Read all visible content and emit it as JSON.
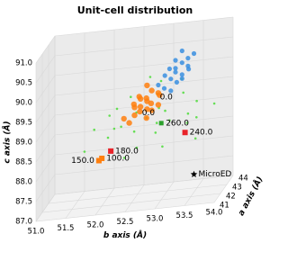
{
  "chart_data": {
    "type": "scatter3d",
    "title": "Unit-cell distribution",
    "xlabel": "b axis (Å)",
    "ylabel": "c axis (Å)",
    "zlabel": "a axis (Å)",
    "xlim": [
      51,
      54
    ],
    "ylim": [
      87,
      91
    ],
    "zlim": [
      41,
      44
    ],
    "xticks": [
      {
        "value": 51,
        "label": "51.0"
      },
      {
        "value": 51.5,
        "label": "51.5"
      },
      {
        "value": 52,
        "label": "52.0"
      },
      {
        "value": 52.5,
        "label": "52.5"
      },
      {
        "value": 53,
        "label": "53.0"
      },
      {
        "value": 53.5,
        "label": "53.5"
      },
      {
        "value": 54,
        "label": "54.0"
      }
    ],
    "yticks": [
      {
        "value": 87,
        "label": "87.0"
      },
      {
        "value": 87.5,
        "label": "87.5"
      },
      {
        "value": 88,
        "label": "88.0"
      },
      {
        "value": 88.5,
        "label": "88.5"
      },
      {
        "value": 89,
        "label": "89.0"
      },
      {
        "value": 89.5,
        "label": "89.5"
      },
      {
        "value": 90,
        "label": "90.0"
      },
      {
        "value": 90.5,
        "label": "90.5"
      },
      {
        "value": 91,
        "label": "91.0"
      }
    ],
    "zticks": [
      41,
      42,
      43,
      44
    ],
    "grid": true,
    "series": [
      {
        "color": "#4ddc3a",
        "marker": "dot",
        "size": 1.3,
        "x": [
          52.2,
          52.5,
          52.8,
          53.1,
          53.4,
          52.0,
          52.6,
          52.9,
          53.3,
          53.6,
          51.8,
          52.3,
          52.7,
          53.0,
          53.5,
          52.4,
          52.9,
          53.2,
          52.1,
          52.6,
          53.8,
          51.7,
          52.8,
          53.1,
          52.5,
          53.3,
          52.2,
          53.0,
          52.7,
          53.6
        ],
        "y": [
          88.9,
          89.1,
          88.7,
          89.3,
          89.0,
          88.5,
          88.4,
          89.6,
          88.6,
          89.4,
          88.8,
          89.5,
          89.9,
          88.3,
          88.8,
          88.2,
          89.2,
          89.7,
          89.2,
          88.9,
          89.1,
          88.4,
          88.5,
          88.9,
          89.7,
          89.5,
          88.7,
          90.0,
          89.0,
          88.5
        ],
        "z": [
          42.1,
          42.8,
          43.2,
          41.7,
          42.5,
          43.0,
          41.9,
          42.4,
          43.3,
          42.0,
          42.7,
          41.6,
          43.1,
          42.2,
          42.9,
          41.8,
          42.6,
          43.4,
          42.3,
          41.5,
          42.9,
          42.1,
          43.0,
          42.4,
          41.9,
          42.7,
          43.2,
          42.0,
          42.5,
          41.8
        ]
      },
      {
        "color": "#3a8fe0",
        "marker": "dot",
        "size": 2.6,
        "x": [
          53.0,
          53.1,
          53.2,
          53.3,
          53.4,
          53.2,
          53.1,
          53.3,
          53.0,
          53.4,
          53.2,
          53.5,
          53.1,
          53.3,
          53.2,
          52.9,
          53.4,
          53.3
        ],
        "y": [
          89.7,
          89.9,
          90.1,
          90.3,
          90.4,
          89.8,
          90.2,
          90.0,
          90.0,
          90.2,
          90.4,
          90.5,
          89.6,
          90.6,
          90.2,
          89.8,
          90.1,
          89.9
        ],
        "z": [
          42.5,
          42.6,
          42.4,
          42.5,
          42.5,
          42.6,
          42.4,
          42.5,
          42.6,
          42.5,
          42.4,
          42.5,
          42.6,
          42.5,
          42.4,
          42.5,
          42.6,
          42.5
        ]
      },
      {
        "color": "#ff7f0e",
        "marker": "dot",
        "size": 3.2,
        "x": [
          52.6,
          52.7,
          52.8,
          52.5,
          52.9,
          52.6,
          52.7,
          52.4,
          52.8,
          52.5,
          52.7,
          52.6,
          52.9,
          52.3,
          52.8,
          52.6,
          52.7,
          52.5,
          52.9,
          52.7
        ],
        "y": [
          89.3,
          89.4,
          89.2,
          89.1,
          89.5,
          89.6,
          89.0,
          88.9,
          89.7,
          89.3,
          89.8,
          89.2,
          89.3,
          89.0,
          89.4,
          89.5,
          89.2,
          89.4,
          89.6,
          89.5
        ],
        "z": [
          42.5,
          42.6,
          42.4,
          42.5,
          42.7,
          42.3,
          42.5,
          42.6,
          42.4,
          42.5,
          42.6,
          42.4,
          42.5,
          42.7,
          42.3,
          42.5,
          42.6,
          42.4,
          42.5,
          42.5
        ]
      },
      {
        "color": "#e8232a",
        "marker": "square",
        "size": 3,
        "x": [
          52.1,
          53.35
        ],
        "y": [
          88.26,
          88.53
        ],
        "z": [
          42.5,
          42.5
        ]
      },
      {
        "color": "#ff7f0e",
        "marker": "square",
        "size": 3,
        "x": [
          51.95,
          51.9
        ],
        "y": [
          88.1,
          88.05
        ],
        "z": [
          42.5,
          42.5
        ]
      },
      {
        "color": "#2ca02c",
        "marker": "square",
        "size": 2.5,
        "x": [
          52.95
        ],
        "y": [
          88.83
        ],
        "z": [
          42.5
        ]
      },
      {
        "color": "#000000",
        "marker": "star",
        "size": 4,
        "x": [
          53.5
        ],
        "y": [
          87.45
        ],
        "z": [
          42.5
        ]
      }
    ],
    "annotations": [
      {
        "text": "0.0",
        "x": 52.55,
        "y": 89.15,
        "z": 42.5,
        "ha": "left"
      },
      {
        "text": "0.0",
        "x": 52.85,
        "y": 89.5,
        "z": 42.5,
        "ha": "left"
      },
      {
        "text": "180.0",
        "x": 52.1,
        "y": 88.26,
        "z": 42.5,
        "ha": "left"
      },
      {
        "text": "100.0",
        "x": 51.95,
        "y": 88.1,
        "z": 42.5,
        "ha": "left"
      },
      {
        "text": "150.0",
        "x": 51.9,
        "y": 88.05,
        "z": 42.5,
        "ha": "right"
      },
      {
        "text": "240.0",
        "x": 53.35,
        "y": 88.53,
        "z": 42.5,
        "ha": "left"
      },
      {
        "text": "260.0",
        "x": 52.95,
        "y": 88.83,
        "z": 42.5,
        "ha": "left"
      },
      {
        "text": "MicroED",
        "x": 53.5,
        "y": 87.45,
        "z": 42.5,
        "ha": "left"
      }
    ]
  }
}
